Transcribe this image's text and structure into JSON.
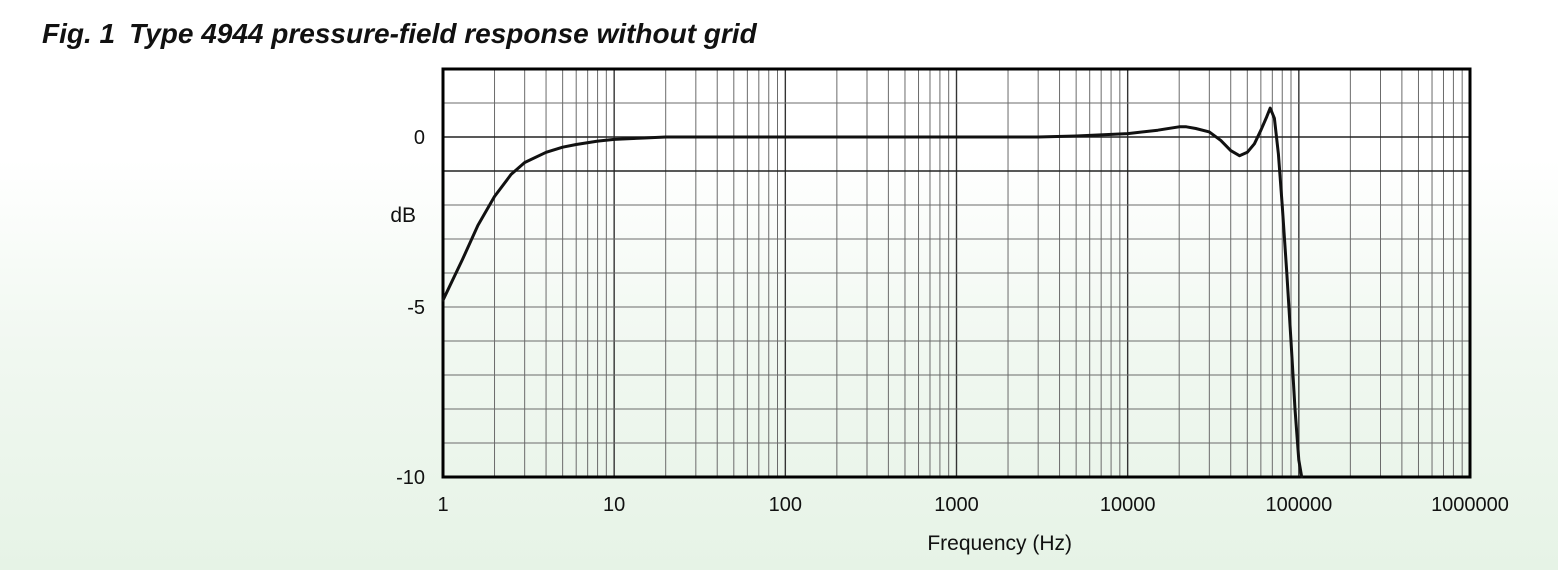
{
  "caption": {
    "label": "Fig. 1",
    "text": "Type 4944 pressure-field response without grid"
  },
  "chart_data": {
    "type": "line",
    "title": "Type 4944 pressure-field response without grid",
    "xlabel": "Frequency (Hz)",
    "ylabel": "dB",
    "x_scale": "log",
    "xlim": [
      1,
      1000000
    ],
    "ylim": [
      -10,
      2
    ],
    "x_ticks": [
      1,
      10,
      100,
      1000,
      10000,
      100000,
      1000000
    ],
    "x_tick_labels": [
      "1",
      "10",
      "100",
      "1000",
      "10000",
      "100000",
      "1000000"
    ],
    "y_ticks": [
      0,
      -5,
      -10
    ],
    "y_tick_labels": [
      "0",
      "-5",
      "-10"
    ],
    "grid": true,
    "legend": "none",
    "line_color": "#111111",
    "series": [
      {
        "x": [
          1,
          1.3,
          1.6,
          2,
          2.5,
          3,
          4,
          5,
          6,
          8,
          10,
          15,
          20,
          50,
          100,
          300,
          1000,
          3000,
          5000,
          10000,
          15000,
          20000,
          22000,
          25000,
          30000,
          35000,
          40000,
          45000,
          50000,
          55000,
          60000,
          65000,
          68000,
          72000,
          76000,
          80000,
          85000,
          90000,
          95000,
          100000,
          104000
        ],
        "y": [
          -4.8,
          -3.6,
          -2.6,
          -1.75,
          -1.1,
          -0.75,
          -0.45,
          -0.3,
          -0.22,
          -0.12,
          -0.07,
          -0.03,
          0,
          0,
          0,
          0,
          0,
          0,
          0.03,
          0.1,
          0.2,
          0.3,
          0.3,
          0.25,
          0.15,
          -0.1,
          -0.4,
          -0.55,
          -0.45,
          -0.2,
          0.2,
          0.6,
          0.85,
          0.55,
          -0.5,
          -2.0,
          -4.0,
          -6.0,
          -8.0,
          -9.5,
          -10.0
        ]
      }
    ]
  }
}
